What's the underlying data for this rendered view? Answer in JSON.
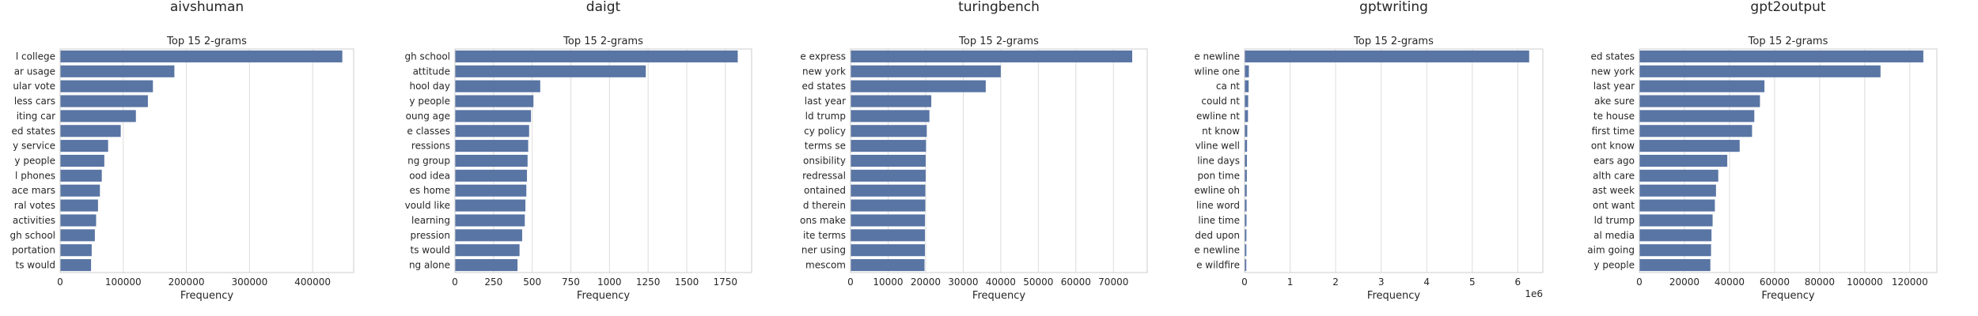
{
  "bar_color": "#5975a4",
  "grid_color": "#dcdcdc",
  "spine_color": "#cccccc",
  "chart_data": [
    {
      "type": "bar",
      "orientation": "horizontal",
      "suptitle": "aivshuman",
      "title": "Top 15 2-grams",
      "xlabel": "Frequency",
      "ylabel": "",
      "xlim": [
        0,
        465000
      ],
      "xticks": [
        0,
        100000,
        200000,
        300000,
        400000
      ],
      "xtick_labels": [
        "0",
        "100000",
        "200000",
        "300000",
        "400000"
      ],
      "offset_text": "",
      "grid": true,
      "categories": [
        "l college",
        "ar usage",
        "ular vote",
        "less cars",
        "iting car",
        "ed states",
        "y service",
        "y people",
        "l phones",
        "ace mars",
        "ral votes",
        "activities",
        "gh school",
        "portation",
        "ts would"
      ],
      "values": [
        447000,
        181000,
        147000,
        139000,
        120000,
        96000,
        76000,
        70000,
        66000,
        63000,
        60000,
        57000,
        55000,
        50000,
        49000
      ]
    },
    {
      "type": "bar",
      "orientation": "horizontal",
      "suptitle": "daigt",
      "title": "Top 15 2-grams",
      "xlabel": "Frequency",
      "ylabel": "",
      "xlim": [
        0,
        1920
      ],
      "xticks": [
        0,
        250,
        500,
        750,
        1000,
        1250,
        1500,
        1750
      ],
      "xtick_labels": [
        "0",
        "250",
        "500",
        "750",
        "1000",
        "1250",
        "1500",
        "1750"
      ],
      "offset_text": "",
      "grid": true,
      "categories": [
        "gh school",
        "attitude",
        "hool day",
        "y people",
        "oung age",
        "e classes",
        "ressions",
        "ng group",
        "ood idea",
        "es home",
        "vould like",
        "learning",
        "pression",
        "ts would",
        "ng alone"
      ],
      "values": [
        1830,
        1235,
        552,
        508,
        492,
        480,
        474,
        470,
        466,
        462,
        456,
        452,
        435,
        418,
        405
      ]
    },
    {
      "type": "bar",
      "orientation": "horizontal",
      "suptitle": "turingbench",
      "title": "Top 15 2-grams",
      "xlabel": "Frequency",
      "ylabel": "",
      "xlim": [
        0,
        79000
      ],
      "xticks": [
        0,
        10000,
        20000,
        30000,
        40000,
        50000,
        60000,
        70000
      ],
      "xtick_labels": [
        "0",
        "10000",
        "20000",
        "30000",
        "40000",
        "50000",
        "60000",
        "70000"
      ],
      "offset_text": "",
      "grid": true,
      "categories": [
        "e express",
        "new york",
        "ed states",
        "last year",
        "ld trump",
        "cy policy",
        "terms se",
        "onsibility",
        "redressal",
        "ontained",
        "d therein",
        "ons make",
        "ite terms",
        "ner using",
        "mescom"
      ],
      "values": [
        75000,
        40000,
        36000,
        21500,
        21000,
        20300,
        20100,
        20000,
        20000,
        19900,
        19900,
        19800,
        19800,
        19800,
        19700
      ]
    },
    {
      "type": "bar",
      "orientation": "horizontal",
      "suptitle": "gptwriting",
      "title": "Top 15 2-grams",
      "xlabel": "Frequency",
      "ylabel": "",
      "xlim": [
        0,
        6550000
      ],
      "xticks": [
        0,
        1000000,
        2000000,
        3000000,
        4000000,
        5000000,
        6000000
      ],
      "xtick_labels": [
        "0",
        "1",
        "2",
        "3",
        "4",
        "5",
        "6"
      ],
      "offset_text": "1e6",
      "grid": true,
      "categories": [
        "e newline",
        "wline one",
        "ca nt",
        "could nt",
        "ewline nt",
        "nt know",
        "vline well",
        "line days",
        "pon time",
        "ewline oh",
        "line word",
        "line time",
        "ded upon",
        "e newline",
        "e wildfire"
      ],
      "values": [
        6250000,
        95000,
        90000,
        80000,
        75000,
        60000,
        55000,
        52000,
        50000,
        48000,
        45000,
        43000,
        41000,
        40000,
        38000
      ]
    },
    {
      "type": "bar",
      "orientation": "horizontal",
      "suptitle": "gpt2output",
      "title": "Top 15 2-grams",
      "xlabel": "Frequency",
      "ylabel": "",
      "xlim": [
        0,
        132000
      ],
      "xticks": [
        0,
        20000,
        40000,
        60000,
        80000,
        100000,
        120000
      ],
      "xtick_labels": [
        "0",
        "20000",
        "40000",
        "60000",
        "80000",
        "100000",
        "120000"
      ],
      "offset_text": "",
      "grid": true,
      "categories": [
        "ed states",
        "new york",
        "last year",
        "ake sure",
        "te house",
        "first time",
        "ont know",
        "ears ago",
        "alth care",
        "ast week",
        "ont want",
        "ld trump",
        "al media",
        "aim going",
        "y people"
      ],
      "values": [
        126000,
        107000,
        55500,
        53500,
        51000,
        50000,
        44500,
        39000,
        35000,
        34000,
        33500,
        32500,
        32000,
        31800,
        31500
      ]
    }
  ]
}
